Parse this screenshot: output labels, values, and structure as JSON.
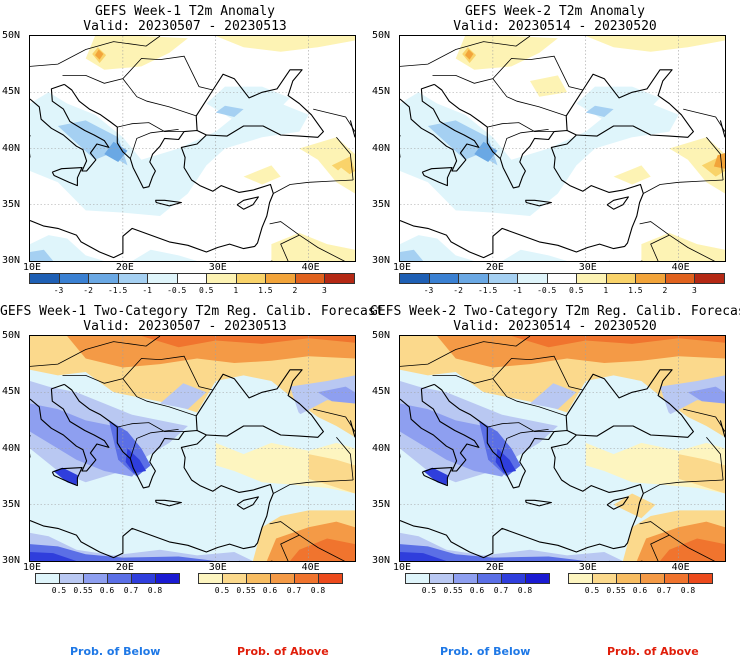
{
  "panels": [
    {
      "id": "p1",
      "title": "GEFS Week-1 T2m Anomaly",
      "valid": "Valid: 20230507 - 20230513",
      "type": "anomaly"
    },
    {
      "id": "p2",
      "title": "GEFS Week-2 T2m Anomaly",
      "valid": "Valid: 20230514 - 20230520",
      "type": "anomaly"
    },
    {
      "id": "p3",
      "title": "GEFS Week-1 Two-Category T2m Reg. Calib. Forecast",
      "valid": "Valid: 20230507 - 20230513",
      "type": "prob"
    },
    {
      "id": "p4",
      "title": "GEFS Week-2 Two-Category T2m Reg. Calib. Forecast",
      "valid": "Valid: 20230514 - 20230520",
      "type": "prob"
    }
  ],
  "axes": {
    "lat_labels": [
      "50N",
      "45N",
      "40N",
      "35N",
      "30N"
    ],
    "lon_labels": [
      "10E",
      "20E",
      "30E",
      "40E"
    ]
  },
  "anomaly_colorbar": {
    "ticks": [
      "-3",
      "-2",
      "-1.5",
      "-1",
      "-0.5",
      "0.5",
      "1",
      "1.5",
      "2",
      "3"
    ],
    "colors": [
      "#1e5fb4",
      "#3a80d2",
      "#6aa8e4",
      "#a5d0f2",
      "#dff5fb",
      "#ffffff",
      "#fdf3b4",
      "#f9d36a",
      "#f2a43a",
      "#e0621e",
      "#b42814"
    ]
  },
  "prob_colorbar_below": {
    "ticks": [
      "0.5",
      "0.55",
      "0.6",
      "0.7",
      "0.8"
    ],
    "colors": [
      "#dff5fb",
      "#b9c8f2",
      "#8e9ff0",
      "#5b6fe6",
      "#2f3edc",
      "#1a1ad2"
    ]
  },
  "prob_colorbar_above": {
    "ticks": [
      "0.5",
      "0.55",
      "0.6",
      "0.7",
      "0.8"
    ],
    "colors": [
      "#fdf5c0",
      "#fbd98c",
      "#f8bd62",
      "#f49a46",
      "#f0742e",
      "#ec4a1c"
    ]
  },
  "legend": {
    "below_label": "Prob. of Below",
    "above_label": "Prob. of Above",
    "below_color": "#1e78e6",
    "above_color": "#e01e0a"
  }
}
